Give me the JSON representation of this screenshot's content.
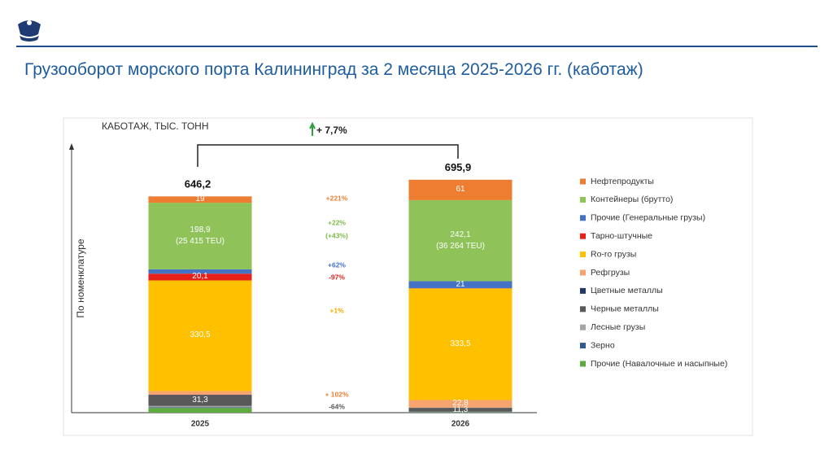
{
  "header": {
    "title": "Грузооборот морского порта Калининград за 2 месяца 2025-2026 гг. (каботаж)"
  },
  "chart_data": {
    "type": "stacked_bar",
    "subtitle": "КАБОТАЖ, ТЫС. ТОНН",
    "y_label": "По номенклатуре",
    "categories": [
      "2025",
      "2026"
    ],
    "ylim": [
      0,
      800
    ],
    "totals": [
      646.2,
      695.9
    ],
    "total_labels": [
      "646,2",
      "695,9"
    ],
    "change_label": "+ 7,7%",
    "series": [
      {
        "name": "Нефтепродукты",
        "color": "#ED7D31",
        "values": [
          19,
          61
        ],
        "value_labels": [
          "19",
          "61"
        ]
      },
      {
        "name": "Контейнеры  (брутто)",
        "color": "#8FC35A",
        "values": [
          198.9,
          242.1
        ],
        "value_labels": [
          "198,9\n(25 415 TEU)",
          "242,1\n(36 264 TEU)"
        ]
      },
      {
        "name": "Прочие (Генеральные грузы)",
        "color": "#4472C4",
        "values": [
          13,
          21
        ],
        "value_labels": [
          null,
          "21"
        ]
      },
      {
        "name": "Тарно-штучные",
        "color": "#E8201A",
        "values": [
          20.1,
          0.6
        ],
        "value_labels": [
          "20,1",
          null
        ]
      },
      {
        "name": "Ro-ro грузы",
        "color": "#FFC000",
        "values": [
          330.5,
          333.5
        ],
        "value_labels": [
          "330,5",
          "333,5"
        ]
      },
      {
        "name": "Рефгрузы",
        "color": "#F4A46C",
        "values": [
          11.3,
          22.8
        ],
        "value_labels": [
          null,
          "22,8"
        ]
      },
      {
        "name": "Цветные металлы",
        "color": "#203864",
        "values": [
          2,
          0.8
        ],
        "value_labels": [
          null,
          null
        ]
      },
      {
        "name": "Черные металлы",
        "color": "#595959",
        "values": [
          31.3,
          11.3
        ],
        "value_labels": [
          "31,3",
          "11,3"
        ]
      },
      {
        "name": "Лесные грузы",
        "color": "#A5A5A5",
        "values": [
          4,
          1
        ],
        "value_labels": [
          null,
          null
        ]
      },
      {
        "name": "Зерно",
        "color": "#2E5B8C",
        "values": [
          2,
          0.8
        ],
        "value_labels": [
          null,
          null
        ]
      },
      {
        "name": "Прочие (Навалочные и насыпные)",
        "color": "#5EAA3E",
        "values": [
          14,
          1
        ],
        "value_labels": [
          null,
          null
        ]
      }
    ],
    "annotations": [
      {
        "text": "+221%",
        "color": "#ED7D31"
      },
      {
        "text": "+22%",
        "color": "#7DB84A"
      },
      {
        "text": "(+43%)",
        "color": "#7DB84A"
      },
      {
        "text": "+62%",
        "color": "#4472C4"
      },
      {
        "text": "-97%",
        "color": "#E8201A"
      },
      {
        "text": "+1%",
        "color": "#F2A900"
      },
      {
        "text": "+ 102%",
        "color": "#ED7D31"
      },
      {
        "text": "-64%",
        "color": "#595959"
      }
    ]
  }
}
